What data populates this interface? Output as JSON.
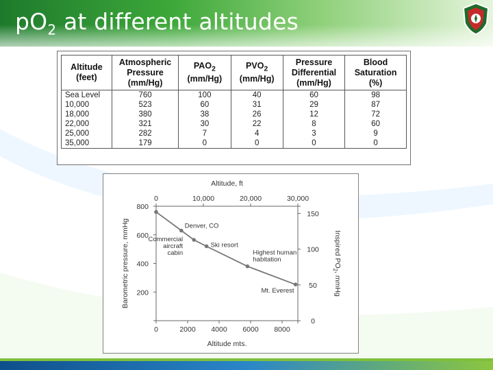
{
  "slide": {
    "title_main": "p",
    "title_o": "O",
    "title_sub": "2",
    "title_rest": " at different altitudes",
    "colors": {
      "header": "#3ea83a",
      "footer": "#2a86c9",
      "curve": "#777777"
    },
    "icons": [
      "university-emblem-icon"
    ]
  },
  "table": {
    "headers": [
      [
        "Altitude",
        "(feet)"
      ],
      [
        "Atmospheric",
        "Pressure",
        "(mm/Hg)"
      ],
      [
        "PAO",
        "(mm/Hg)"
      ],
      [
        "PVO",
        "(mm/Hg)"
      ],
      [
        "Pressure",
        "Differential",
        "(mm/Hg)"
      ],
      [
        "Blood",
        "Saturation",
        "(%)"
      ]
    ],
    "header_subscript": "2",
    "rows": [
      [
        "Sea Level",
        "760",
        "100",
        "40",
        "60",
        "98"
      ],
      [
        "10,000",
        "523",
        "60",
        "31",
        "29",
        "87"
      ],
      [
        "18,000",
        "380",
        "38",
        "26",
        "12",
        "72"
      ],
      [
        "22,000",
        "321",
        "30",
        "22",
        "8",
        "60"
      ],
      [
        "25,000",
        "282",
        "7",
        "4",
        "3",
        "9"
      ],
      [
        "35,000",
        "179",
        "0",
        "0",
        "0",
        "0"
      ]
    ]
  },
  "chart_data": {
    "type": "line",
    "title": "",
    "xlabel": "Altitude mts.",
    "x2label": "Altitude, ft",
    "ylabel": "Barometric pressure, mmHg",
    "y2label_main": "Inspired PO",
    "y2label_sub": "2",
    "y2label_tail": ", mmHg",
    "xlim": [
      0,
      9000
    ],
    "ylim": [
      0,
      800
    ],
    "x2lim": [
      0,
      30000
    ],
    "y2lim": [
      0,
      160
    ],
    "x_ticks": [
      "0",
      "2000",
      "4000",
      "6000",
      "8000"
    ],
    "x_tick_values": [
      0,
      2000,
      4000,
      6000,
      8000
    ],
    "y_ticks": [
      "200",
      "400",
      "600",
      "800"
    ],
    "y_tick_values": [
      200,
      400,
      600,
      800
    ],
    "x2_ticks": [
      "0",
      "10,000",
      "20,000",
      "30,000"
    ],
    "x2_tick_values": [
      0,
      10000,
      20000,
      30000
    ],
    "y2_ticks": [
      "0",
      "50",
      "100",
      "150"
    ],
    "y2_tick_values": [
      0,
      50,
      100,
      150
    ],
    "grid": false,
    "series": [
      {
        "points": [
          {
            "x": 0,
            "y": 760
          },
          {
            "x": 1600,
            "y": 630
          },
          {
            "x": 2400,
            "y": 565
          },
          {
            "x": 3200,
            "y": 520
          },
          {
            "x": 5800,
            "y": 380
          },
          {
            "x": 8850,
            "y": 253
          }
        ]
      }
    ],
    "markers": [
      {
        "x": 0,
        "y": 760
      },
      {
        "x": 1600,
        "y": 630
      },
      {
        "x": 2400,
        "y": 565
      },
      {
        "x": 3200,
        "y": 520
      },
      {
        "x": 5800,
        "y": 380
      },
      {
        "x": 8850,
        "y": 253
      }
    ],
    "annotations": [
      {
        "lines": [
          "Denver, CO"
        ],
        "x": 1600,
        "y": 630
      },
      {
        "lines": [
          "Commercial",
          "aircraft",
          "cabin"
        ],
        "x": 2400,
        "y": 565
      },
      {
        "lines": [
          "Ski resort"
        ],
        "x": 3200,
        "y": 520
      },
      {
        "lines": [
          "Highest human",
          "habitation"
        ],
        "x": 5800,
        "y": 380
      },
      {
        "lines": [
          "Mt. Everest"
        ],
        "x": 8850,
        "y": 253
      }
    ]
  }
}
